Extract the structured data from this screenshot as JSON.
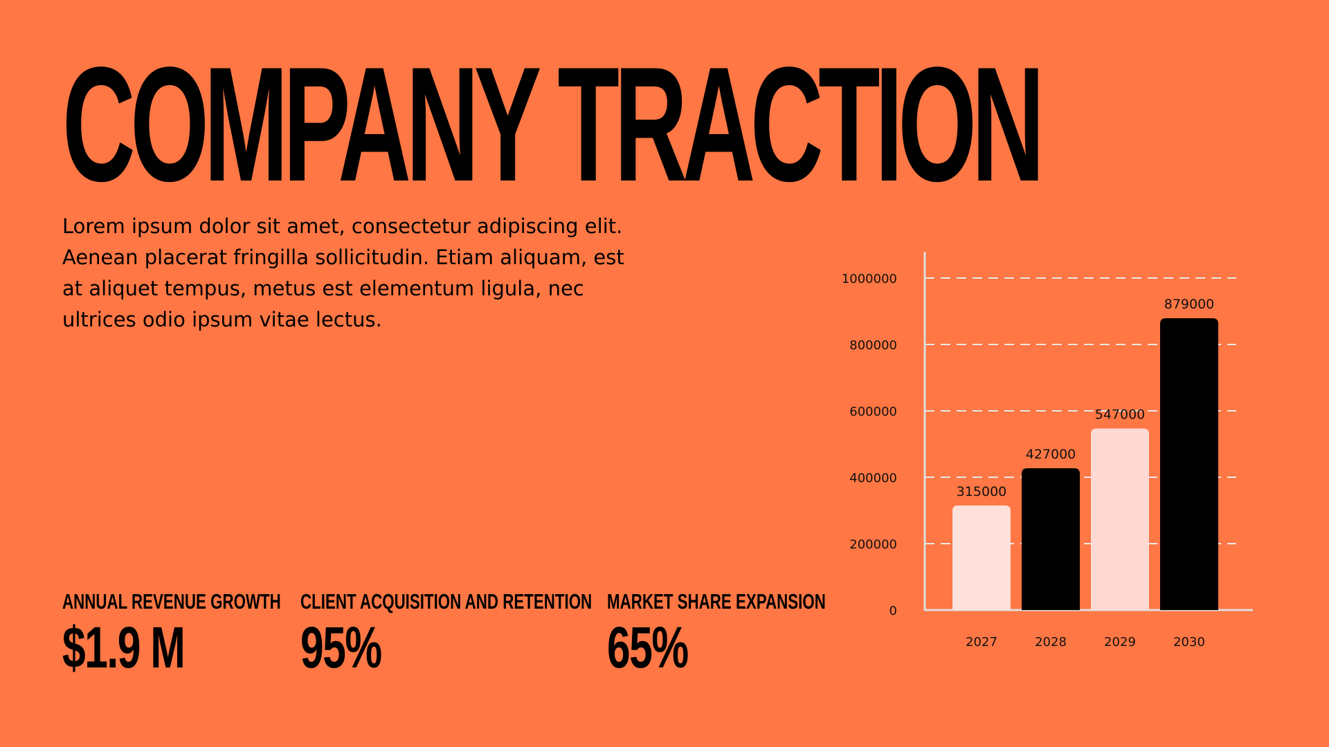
{
  "slide": {
    "title": "COMPANY TRACTION",
    "body": "Lorem ipsum dolor sit amet, consectetur adipiscing elit. Aenean placerat fringilla sollicitudin. Etiam aliquam, est at aliquet tempus, metus est elementum ligula, nec ultrices odio ipsum vitae lectus."
  },
  "stats": [
    {
      "label": "ANNUAL REVENUE GROWTH",
      "value": "$1.9 M"
    },
    {
      "label": "CLIENT ACQUISITION AND RETENTION",
      "value": "95%"
    },
    {
      "label": "MARKET SHARE EXPANSION",
      "value": "65%"
    }
  ],
  "colors": {
    "background": "#FF7744",
    "bar_light": "#FFE1DC",
    "bar_dark": "#000000",
    "axis": "#DDDDDD",
    "grid": "#E8E8E8"
  },
  "chart_data": {
    "type": "bar",
    "categories": [
      "2027",
      "2028",
      "2029",
      "2030"
    ],
    "values": [
      315000,
      427000,
      547000,
      879000
    ],
    "bar_colors": [
      "#FFE1DC",
      "#000000",
      "#FFDAD4",
      "#000000"
    ],
    "data_labels": [
      "315000",
      "427000",
      "547000",
      "879000"
    ],
    "y_ticks": [
      0,
      200000,
      400000,
      600000,
      800000,
      1000000
    ],
    "ylim": [
      0,
      1000000
    ],
    "grid": true,
    "grid_style": "dashed"
  }
}
